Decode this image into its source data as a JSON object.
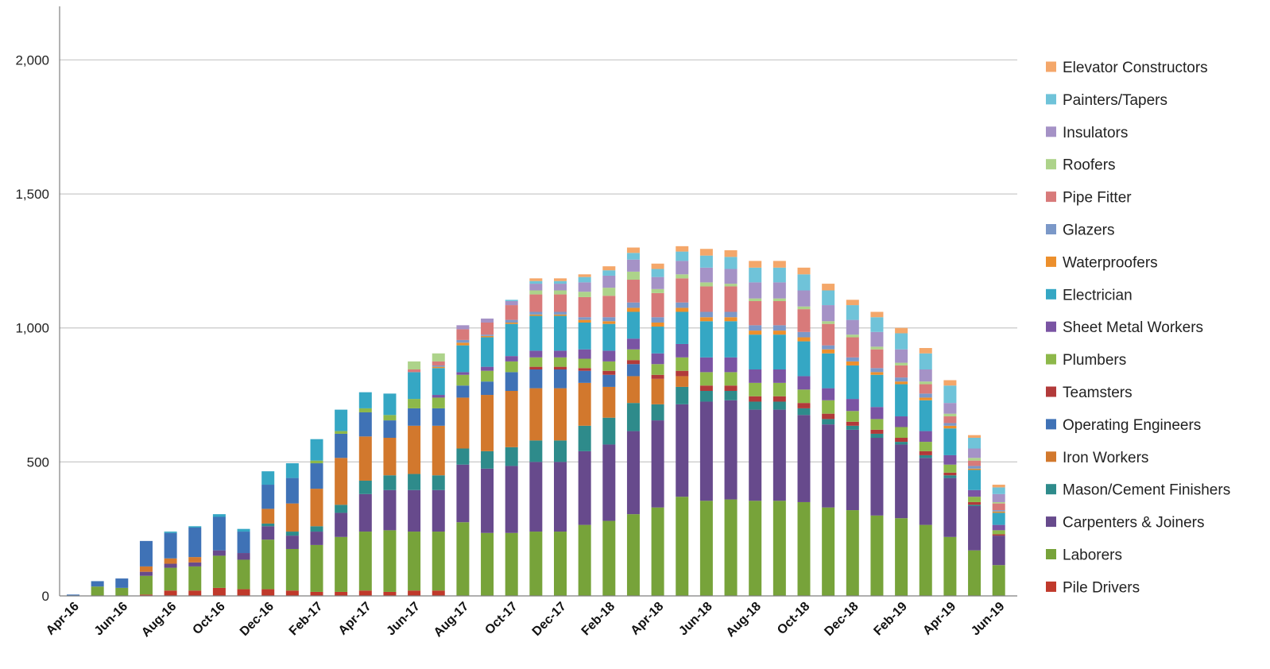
{
  "chart_data": {
    "type": "bar",
    "stacked": true,
    "title": "",
    "xlabel": "",
    "ylabel": "",
    "ylim": [
      0,
      2200
    ],
    "yticks": [
      0,
      500,
      1000,
      1500,
      2000
    ],
    "ytick_labels": [
      "0",
      "500",
      "1,000",
      "1,500",
      "2,000"
    ],
    "grid": "horizontal",
    "legend_position": "right",
    "categories": [
      "Apr-16",
      "May-16",
      "Jun-16",
      "Jul-16",
      "Aug-16",
      "Sep-16",
      "Oct-16",
      "Nov-16",
      "Dec-16",
      "Jan-17",
      "Feb-17",
      "Mar-17",
      "Apr-17",
      "May-17",
      "Jun-17",
      "Jul-17",
      "Aug-17",
      "Sep-17",
      "Oct-17",
      "Nov-17",
      "Dec-17",
      "Jan-18",
      "Feb-18",
      "Mar-18",
      "Apr-18",
      "May-18",
      "Jun-18",
      "Jul-18",
      "Aug-18",
      "Sep-18",
      "Oct-18",
      "Nov-18",
      "Dec-18",
      "Jan-19",
      "Feb-19",
      "Mar-19",
      "Apr-19",
      "May-19",
      "Jun-19"
    ],
    "x_tick_labels": [
      "Apr-16",
      "Jun-16",
      "Aug-16",
      "Oct-16",
      "Dec-16",
      "Feb-17",
      "Apr-17",
      "Jun-17",
      "Aug-17",
      "Oct-17",
      "Dec-17",
      "Feb-18",
      "Apr-18",
      "Jun-18",
      "Aug-18",
      "Oct-18",
      "Dec-18",
      "Feb-19",
      "Apr-19",
      "Jun-19"
    ],
    "series": [
      {
        "name": "Pile Drivers",
        "color": "#c0392b",
        "values": [
          0,
          0,
          0,
          5,
          20,
          20,
          30,
          25,
          25,
          20,
          15,
          15,
          20,
          15,
          20,
          20,
          0,
          0,
          0,
          0,
          0,
          0,
          0,
          0,
          0,
          0,
          0,
          0,
          0,
          0,
          0,
          0,
          0,
          0,
          0,
          0,
          0,
          0,
          0
        ]
      },
      {
        "name": "Laborers",
        "color": "#77a33a",
        "values": [
          0,
          35,
          30,
          70,
          85,
          90,
          120,
          110,
          185,
          155,
          175,
          205,
          220,
          230,
          220,
          220,
          275,
          235,
          235,
          240,
          240,
          265,
          280,
          305,
          330,
          370,
          355,
          360,
          355,
          355,
          350,
          330,
          320,
          300,
          290,
          265,
          220,
          170,
          115
        ]
      },
      {
        "name": "Carpenters & Joiners",
        "color": "#674a8c",
        "values": [
          0,
          0,
          0,
          15,
          15,
          15,
          20,
          25,
          50,
          50,
          50,
          90,
          140,
          150,
          155,
          155,
          215,
          240,
          250,
          260,
          260,
          275,
          285,
          310,
          325,
          345,
          370,
          370,
          340,
          340,
          325,
          310,
          300,
          290,
          275,
          250,
          220,
          165,
          110
        ]
      },
      {
        "name": "Mason/Cement Finishers",
        "color": "#2e8b8b",
        "values": [
          0,
          0,
          0,
          0,
          0,
          0,
          0,
          0,
          10,
          15,
          20,
          30,
          50,
          55,
          60,
          55,
          60,
          65,
          70,
          80,
          80,
          95,
          100,
          105,
          60,
          65,
          40,
          35,
          30,
          30,
          25,
          20,
          15,
          15,
          10,
          10,
          10,
          5,
          0
        ]
      },
      {
        "name": "Iron Workers",
        "color": "#d2782d",
        "values": [
          0,
          0,
          0,
          20,
          20,
          20,
          0,
          0,
          55,
          105,
          140,
          175,
          165,
          140,
          180,
          185,
          190,
          210,
          210,
          195,
          195,
          160,
          115,
          100,
          95,
          40,
          0,
          0,
          0,
          0,
          0,
          0,
          0,
          0,
          0,
          0,
          0,
          0,
          0
        ]
      },
      {
        "name": "Operating Engineers",
        "color": "#3f72b6",
        "values": [
          5,
          20,
          35,
          95,
          95,
          110,
          125,
          80,
          90,
          95,
          95,
          90,
          90,
          65,
          65,
          65,
          45,
          50,
          70,
          70,
          70,
          45,
          45,
          45,
          0,
          0,
          0,
          0,
          0,
          0,
          0,
          0,
          0,
          0,
          0,
          0,
          0,
          0,
          0
        ]
      },
      {
        "name": "Teamsters",
        "color": "#b23a3a",
        "values": [
          0,
          0,
          0,
          0,
          0,
          0,
          0,
          0,
          0,
          0,
          0,
          0,
          0,
          0,
          0,
          0,
          0,
          0,
          0,
          10,
          10,
          10,
          15,
          15,
          15,
          20,
          20,
          20,
          20,
          20,
          20,
          20,
          15,
          15,
          15,
          15,
          10,
          10,
          5
        ]
      },
      {
        "name": "Plumbers",
        "color": "#8db84a",
        "values": [
          0,
          0,
          0,
          0,
          0,
          0,
          0,
          0,
          0,
          0,
          10,
          10,
          15,
          20,
          35,
          40,
          40,
          40,
          40,
          35,
          35,
          35,
          35,
          40,
          40,
          50,
          50,
          50,
          50,
          50,
          50,
          50,
          40,
          40,
          40,
          35,
          30,
          20,
          15
        ]
      },
      {
        "name": "Sheet Metal Workers",
        "color": "#7a54a3",
        "values": [
          0,
          0,
          0,
          0,
          0,
          0,
          0,
          0,
          0,
          0,
          0,
          0,
          0,
          0,
          0,
          10,
          10,
          15,
          20,
          25,
          25,
          35,
          40,
          40,
          40,
          50,
          55,
          55,
          50,
          50,
          50,
          45,
          45,
          45,
          40,
          40,
          35,
          25,
          20
        ]
      },
      {
        "name": "Electrician",
        "color": "#35a7c4",
        "values": [
          0,
          0,
          0,
          0,
          5,
          5,
          10,
          10,
          50,
          55,
          80,
          80,
          60,
          80,
          100,
          100,
          100,
          110,
          120,
          130,
          130,
          100,
          100,
          100,
          100,
          120,
          135,
          135,
          130,
          130,
          130,
          130,
          125,
          120,
          120,
          115,
          100,
          75,
          45
        ]
      },
      {
        "name": "Waterproofers",
        "color": "#ec8f2c",
        "values": [
          0,
          0,
          0,
          0,
          0,
          0,
          0,
          0,
          0,
          0,
          0,
          0,
          0,
          0,
          0,
          5,
          10,
          5,
          5,
          5,
          5,
          10,
          10,
          15,
          15,
          15,
          15,
          15,
          15,
          15,
          15,
          15,
          15,
          10,
          10,
          10,
          10,
          5,
          5
        ]
      },
      {
        "name": "Glazers",
        "color": "#7b98c8",
        "values": [
          0,
          0,
          0,
          0,
          0,
          0,
          0,
          0,
          0,
          0,
          0,
          0,
          0,
          0,
          0,
          5,
          10,
          5,
          10,
          10,
          10,
          10,
          15,
          20,
          20,
          20,
          20,
          20,
          20,
          20,
          20,
          15,
          15,
          15,
          15,
          15,
          10,
          10,
          5
        ]
      },
      {
        "name": "Pipe Fitter",
        "color": "#d87a7a",
        "values": [
          0,
          0,
          0,
          0,
          0,
          0,
          0,
          0,
          0,
          0,
          0,
          0,
          0,
          0,
          10,
          15,
          40,
          45,
          55,
          65,
          65,
          75,
          80,
          85,
          90,
          90,
          95,
          95,
          90,
          90,
          85,
          80,
          75,
          70,
          45,
          35,
          25,
          20,
          25
        ]
      },
      {
        "name": "Roofers",
        "color": "#add38a",
        "values": [
          0,
          0,
          0,
          0,
          0,
          0,
          0,
          0,
          0,
          0,
          0,
          0,
          0,
          0,
          30,
          30,
          0,
          0,
          0,
          15,
          15,
          20,
          30,
          30,
          15,
          15,
          15,
          10,
          10,
          10,
          10,
          10,
          10,
          10,
          10,
          10,
          10,
          10,
          5
        ]
      },
      {
        "name": "Insulators",
        "color": "#a592c6",
        "values": [
          0,
          0,
          0,
          0,
          0,
          0,
          0,
          0,
          0,
          0,
          0,
          0,
          0,
          0,
          0,
          0,
          15,
          15,
          15,
          25,
          25,
          35,
          45,
          45,
          45,
          50,
          55,
          55,
          60,
          60,
          60,
          60,
          55,
          55,
          50,
          45,
          40,
          35,
          30
        ]
      },
      {
        "name": "Painters/Tapers",
        "color": "#6fc3d9",
        "values": [
          0,
          0,
          0,
          0,
          0,
          0,
          0,
          0,
          0,
          0,
          0,
          0,
          0,
          0,
          0,
          0,
          0,
          0,
          5,
          10,
          10,
          20,
          20,
          25,
          30,
          35,
          45,
          45,
          55,
          55,
          60,
          55,
          55,
          55,
          60,
          60,
          65,
          40,
          25
        ]
      },
      {
        "name": "Elevator Constructors",
        "color": "#f4a76a",
        "values": [
          0,
          0,
          0,
          0,
          0,
          0,
          0,
          0,
          0,
          0,
          0,
          0,
          0,
          0,
          0,
          0,
          0,
          0,
          0,
          10,
          10,
          10,
          15,
          20,
          20,
          20,
          25,
          25,
          25,
          25,
          25,
          25,
          20,
          20,
          20,
          20,
          20,
          10,
          10
        ]
      }
    ]
  }
}
